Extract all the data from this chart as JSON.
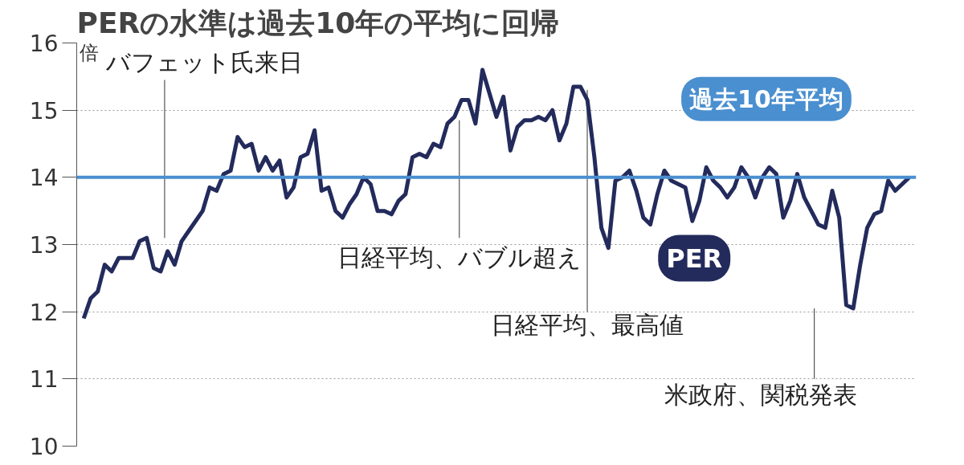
{
  "chart_data": {
    "type": "line",
    "title": "PERの水準は過去10年の平均に回帰",
    "ylabel": "倍",
    "categories": [
      null,
      null,
      null,
      null,
      null,
      null,
      null,
      null,
      null,
      null,
      null,
      null,
      null,
      null,
      null,
      null,
      null,
      null,
      null,
      null,
      null,
      null,
      null,
      null,
      null,
      null,
      null,
      null,
      null,
      null,
      null,
      null,
      null,
      null,
      null,
      null,
      null,
      null,
      null,
      null,
      null,
      null,
      null,
      null,
      null,
      null,
      null,
      null,
      null,
      null,
      null,
      null,
      null,
      null,
      null,
      null,
      null,
      null,
      null,
      null,
      null,
      null,
      null,
      null,
      null,
      null,
      null,
      null,
      null,
      null,
      null,
      null,
      null,
      null,
      null,
      null,
      null,
      null,
      null,
      null,
      null,
      null,
      null,
      null,
      null,
      null,
      null,
      null,
      null,
      null,
      null,
      null,
      null,
      null,
      null,
      null,
      null,
      null,
      null,
      null,
      null,
      null,
      null,
      null,
      null,
      null,
      null,
      null,
      null,
      null,
      null,
      null,
      null,
      null,
      null,
      null,
      null,
      null,
      null
    ],
    "series": [
      {
        "name": "PER",
        "color": "#232b5c",
        "values": [
          11.9,
          12.2,
          12.3,
          12.7,
          12.6,
          12.8,
          12.8,
          12.8,
          13.05,
          13.1,
          12.65,
          12.6,
          12.9,
          12.7,
          13.05,
          13.2,
          13.35,
          13.5,
          13.85,
          13.8,
          14.05,
          14.1,
          14.6,
          14.45,
          14.5,
          14.1,
          14.3,
          14.1,
          14.25,
          13.7,
          13.85,
          14.3,
          14.35,
          14.7,
          13.8,
          13.85,
          13.5,
          13.4,
          13.6,
          13.75,
          14.0,
          13.9,
          13.5,
          13.5,
          13.45,
          13.65,
          13.75,
          14.3,
          14.35,
          14.3,
          14.5,
          14.45,
          14.8,
          14.9,
          15.15,
          15.15,
          14.8,
          15.6,
          15.25,
          14.9,
          15.2,
          14.4,
          14.75,
          14.85,
          14.85,
          14.9,
          14.85,
          15.0,
          14.55,
          14.8,
          15.35,
          15.35,
          15.15,
          14.3,
          13.25,
          12.95,
          13.95,
          14.0,
          14.1,
          13.8,
          13.4,
          13.3,
          13.75,
          14.1,
          13.95,
          13.9,
          13.85,
          13.35,
          13.65,
          14.15,
          13.95,
          13.85,
          13.7,
          13.85,
          14.15,
          14.0,
          13.7,
          14.0,
          14.15,
          14.05,
          13.4,
          13.65,
          14.05,
          13.7,
          13.5,
          13.3,
          13.25,
          13.8,
          13.4,
          12.1,
          12.05,
          12.7,
          13.25,
          13.45,
          13.5,
          13.95,
          13.8,
          13.9,
          14.0
        ]
      }
    ],
    "ylim": [
      10,
      16
    ],
    "yticks": [
      10,
      11,
      12,
      13,
      14,
      15,
      16
    ],
    "grid": "y",
    "tick_labels": "y",
    "ref_lines": [
      {
        "axis": "y",
        "value": 14,
        "label": "過去10年平均",
        "color": "#4a8fd0"
      }
    ],
    "annotations": [
      "バフェット氏来日",
      "日経平均、バブル超え",
      "日経平均、最高値",
      "米政府、関税発表"
    ]
  }
}
